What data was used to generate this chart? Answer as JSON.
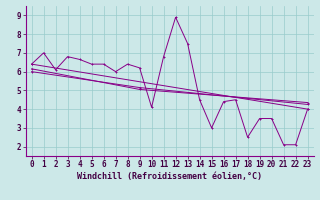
{
  "xlabel": "Windchill (Refroidissement éolien,°C)",
  "bg_color": "#cce8e8",
  "line_color": "#880088",
  "grid_color": "#99cccc",
  "xlim": [
    -0.5,
    23.5
  ],
  "ylim": [
    1.5,
    9.5
  ],
  "xticks": [
    0,
    1,
    2,
    3,
    4,
    5,
    6,
    7,
    8,
    9,
    10,
    11,
    12,
    13,
    14,
    15,
    16,
    17,
    18,
    19,
    20,
    21,
    22,
    23
  ],
  "yticks": [
    2,
    3,
    4,
    5,
    6,
    7,
    8,
    9
  ],
  "series1_x": [
    0,
    1,
    2,
    3,
    4,
    5,
    6,
    7,
    8,
    9,
    10,
    11,
    12,
    13,
    14,
    15,
    16,
    17,
    18,
    19,
    20,
    21,
    22,
    23
  ],
  "series1_y": [
    6.4,
    7.0,
    6.1,
    6.8,
    6.65,
    6.4,
    6.4,
    6.0,
    6.4,
    6.2,
    4.1,
    6.8,
    8.9,
    7.5,
    4.5,
    3.0,
    4.4,
    4.5,
    2.5,
    3.5,
    3.5,
    2.1,
    2.1,
    4.0
  ],
  "series2_x": [
    0,
    23
  ],
  "series2_y": [
    6.4,
    4.0
  ],
  "series3_x": [
    0,
    9,
    23
  ],
  "series3_y": [
    6.0,
    5.15,
    4.25
  ],
  "series4_x": [
    0,
    9,
    23
  ],
  "series4_y": [
    6.15,
    5.05,
    4.35
  ],
  "xlabel_fontsize": 6,
  "tick_fontsize": 5.5,
  "lw": 0.7,
  "ms": 2.0
}
